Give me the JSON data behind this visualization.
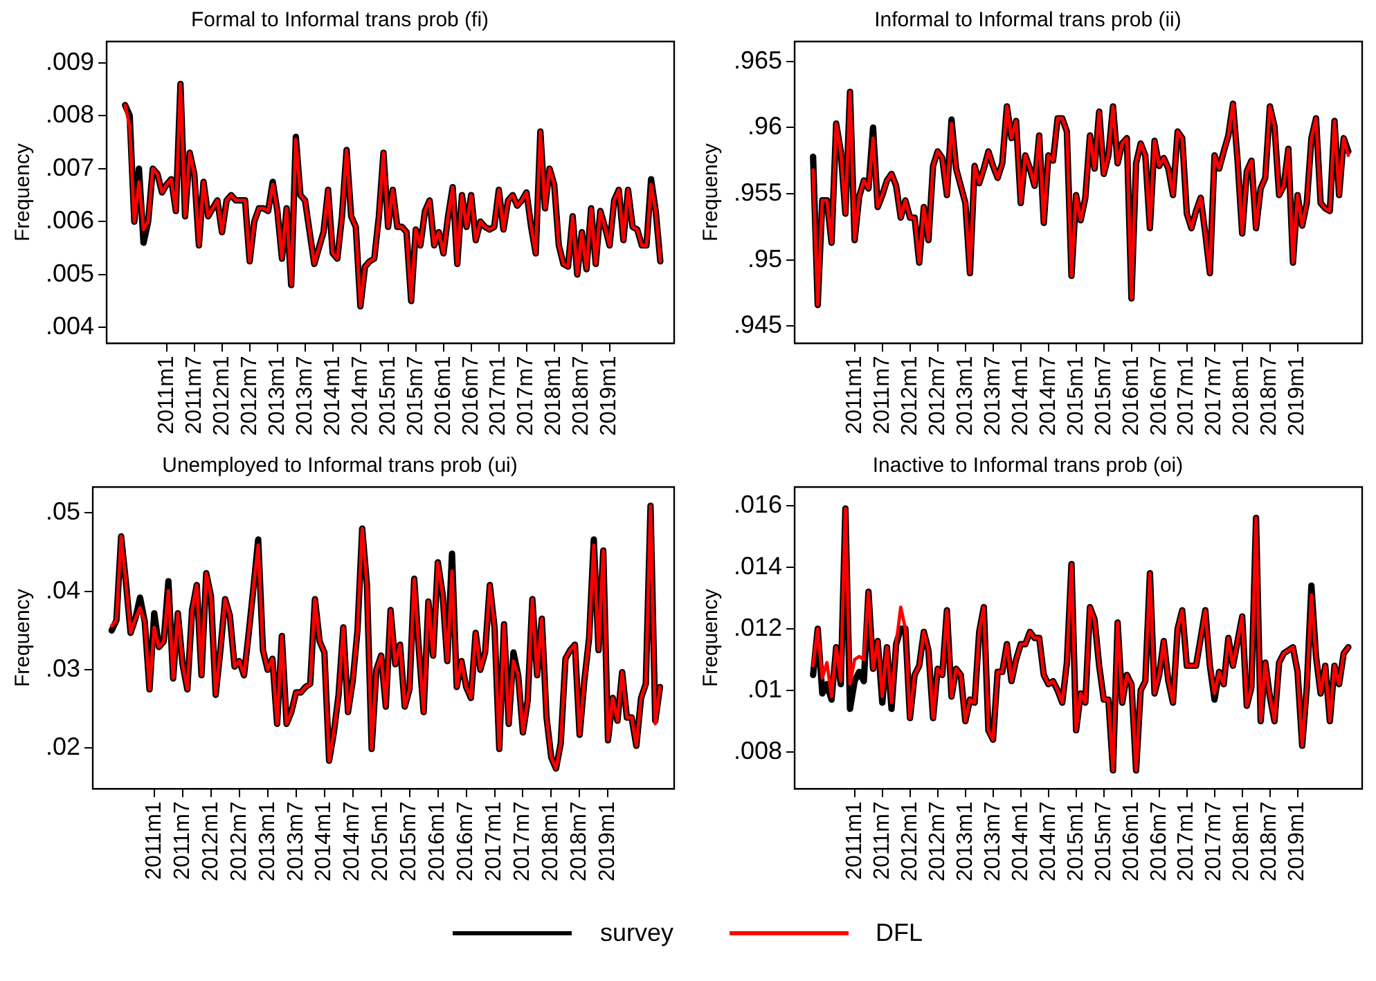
{
  "chart_data": [
    {
      "type": "line",
      "title": "Formal to Informal trans prob (fi)",
      "ylabel": "Frequency",
      "legend": "bottom",
      "grid": false,
      "x": [
        "2010-04",
        "2010-05",
        "2010-06",
        "2010-07",
        "2010-08",
        "2010-09",
        "2010-10",
        "2010-11",
        "2010-12",
        "2011-01",
        "2011-02",
        "2011-03",
        "2011-04",
        "2011-05",
        "2011-06",
        "2011-07",
        "2011-08",
        "2011-09",
        "2011-10",
        "2011-11",
        "2011-12",
        "2012-01",
        "2012-02",
        "2012-03",
        "2012-04",
        "2012-05",
        "2012-06",
        "2012-07",
        "2012-08",
        "2012-09",
        "2012-10",
        "2012-11",
        "2012-12",
        "2013-01",
        "2013-02",
        "2013-03",
        "2013-04",
        "2013-05",
        "2013-06",
        "2013-07",
        "2013-08",
        "2013-09",
        "2013-10",
        "2013-11",
        "2013-12",
        "2014-01",
        "2014-02",
        "2014-03",
        "2014-04",
        "2014-05",
        "2014-06",
        "2014-07",
        "2014-08",
        "2014-09",
        "2014-10",
        "2014-11",
        "2014-12",
        "2015-01",
        "2015-02",
        "2015-03",
        "2015-04",
        "2015-05",
        "2015-06",
        "2015-07",
        "2015-08",
        "2015-09",
        "2015-10",
        "2015-11",
        "2015-12",
        "2016-01",
        "2016-02",
        "2016-03",
        "2016-04",
        "2016-05",
        "2016-06",
        "2016-07",
        "2016-08",
        "2016-09",
        "2016-10",
        "2016-11",
        "2016-12",
        "2017-01",
        "2017-02",
        "2017-03",
        "2017-04",
        "2017-05",
        "2017-06",
        "2017-07",
        "2017-08",
        "2017-09",
        "2017-10",
        "2017-11",
        "2017-12",
        "2018-01",
        "2018-02",
        "2018-03",
        "2018-04",
        "2018-05",
        "2018-06",
        "2018-07",
        "2018-08",
        "2018-09",
        "2018-10",
        "2018-11",
        "2018-12",
        "2019-01",
        "2019-02",
        "2019-03",
        "2019-04",
        "2019-05",
        "2019-06",
        "2019-07",
        "2019-08",
        "2019-09",
        "2019-10",
        "2019-11",
        "2019-12"
      ],
      "xlim": [
        "2009-12",
        "2020-03"
      ],
      "xticks": [
        {
          "value": "2011-01",
          "label": "2011m1"
        },
        {
          "value": "2011-07",
          "label": "2011m7"
        },
        {
          "value": "2012-01",
          "label": "2012m1"
        },
        {
          "value": "2012-07",
          "label": "2012m7"
        },
        {
          "value": "2013-01",
          "label": "2013m1"
        },
        {
          "value": "2013-07",
          "label": "2013m7"
        },
        {
          "value": "2014-01",
          "label": "2014m1"
        },
        {
          "value": "2014-07",
          "label": "2014m7"
        },
        {
          "value": "2015-01",
          "label": "2015m1"
        },
        {
          "value": "2015-07",
          "label": "2015m7"
        },
        {
          "value": "2016-01",
          "label": "2016m1"
        },
        {
          "value": "2016-07",
          "label": "2016m7"
        },
        {
          "value": "2017-01",
          "label": "2017m1"
        },
        {
          "value": "2017-07",
          "label": "2017m7"
        },
        {
          "value": "2018-01",
          "label": "2018m1"
        },
        {
          "value": "2018-07",
          "label": "2018m7"
        },
        {
          "value": "2019-01",
          "label": "2019m1"
        }
      ],
      "ylim": [
        0.0037,
        0.0094
      ],
      "yticks": [
        {
          "value": 0.004,
          "label": ".004"
        },
        {
          "value": 0.005,
          "label": ".005"
        },
        {
          "value": 0.006,
          "label": ".006"
        },
        {
          "value": 0.007,
          "label": ".007"
        },
        {
          "value": 0.008,
          "label": ".008"
        },
        {
          "value": 0.009,
          "label": ".009"
        }
      ],
      "series": [
        {
          "name": "survey",
          "color": "#000000",
          "values": [
            0.0082,
            0.008,
            0.006,
            0.007,
            0.0056,
            0.006,
            0.007,
            0.0069,
            0.00655,
            0.0067,
            0.0068,
            0.0062,
            0.0086,
            0.0061,
            0.0073,
            0.0069,
            0.00555,
            0.00675,
            0.0061,
            0.00625,
            0.0064,
            0.0058,
            0.0064,
            0.0065,
            0.0064,
            0.0064,
            0.0064,
            0.00525,
            0.006,
            0.00625,
            0.00625,
            0.0062,
            0.00675,
            0.0062,
            0.0053,
            0.00625,
            0.0048,
            0.0076,
            0.0065,
            0.0064,
            0.0058,
            0.0052,
            0.0055,
            0.0058,
            0.0066,
            0.0054,
            0.0053,
            0.0061,
            0.00735,
            0.0061,
            0.0059,
            0.0044,
            0.00515,
            0.00525,
            0.0053,
            0.0061,
            0.0073,
            0.0059,
            0.0066,
            0.0059,
            0.0059,
            0.0058,
            0.0045,
            0.00585,
            0.00555,
            0.0062,
            0.0064,
            0.00555,
            0.0058,
            0.0054,
            0.0061,
            0.00665,
            0.0052,
            0.0065,
            0.0059,
            0.0065,
            0.00565,
            0.006,
            0.0059,
            0.00585,
            0.0059,
            0.0066,
            0.00585,
            0.0064,
            0.0065,
            0.0063,
            0.0064,
            0.00655,
            0.0059,
            0.0054,
            0.0077,
            0.00625,
            0.007,
            0.0067,
            0.00555,
            0.0052,
            0.00515,
            0.0061,
            0.005,
            0.0058,
            0.0051,
            0.00625,
            0.0052,
            0.0062,
            0.0059,
            0.00555,
            0.0064,
            0.0066,
            0.00565,
            0.0066,
            0.0059,
            0.00585,
            0.00555,
            0.00555,
            0.0068,
            0.0062,
            0.00525
          ]
        },
        {
          "name": "DFL",
          "color": "#ff0000",
          "values": [
            0.0082,
            0.0078,
            0.006,
            0.00675,
            0.00585,
            0.006,
            0.007,
            0.0069,
            0.00655,
            0.0067,
            0.0068,
            0.0062,
            0.0086,
            0.0061,
            0.0073,
            0.0069,
            0.00555,
            0.00675,
            0.0061,
            0.00625,
            0.0064,
            0.0058,
            0.0064,
            0.0065,
            0.0064,
            0.0064,
            0.0064,
            0.00525,
            0.006,
            0.00625,
            0.00625,
            0.0062,
            0.0067,
            0.0062,
            0.0053,
            0.00625,
            0.0048,
            0.00755,
            0.0065,
            0.0064,
            0.0058,
            0.0052,
            0.0055,
            0.0058,
            0.0066,
            0.0054,
            0.0053,
            0.0061,
            0.00735,
            0.0061,
            0.0059,
            0.0044,
            0.00515,
            0.00525,
            0.0053,
            0.0061,
            0.0073,
            0.0059,
            0.0066,
            0.0059,
            0.0059,
            0.0058,
            0.0045,
            0.00585,
            0.00555,
            0.0062,
            0.0064,
            0.00555,
            0.0058,
            0.0054,
            0.0061,
            0.00665,
            0.0052,
            0.0065,
            0.0059,
            0.0065,
            0.00565,
            0.006,
            0.0059,
            0.00585,
            0.0059,
            0.0066,
            0.00585,
            0.0064,
            0.0065,
            0.0063,
            0.0064,
            0.00655,
            0.0059,
            0.0054,
            0.0077,
            0.00625,
            0.007,
            0.0067,
            0.00555,
            0.0052,
            0.00515,
            0.0061,
            0.005,
            0.0058,
            0.0051,
            0.00625,
            0.0052,
            0.0062,
            0.0059,
            0.00555,
            0.0064,
            0.0066,
            0.00565,
            0.0066,
            0.0059,
            0.00585,
            0.00555,
            0.00555,
            0.0067,
            0.0062,
            0.00525
          ]
        }
      ]
    },
    {
      "type": "line",
      "title": "Informal to Informal trans prob (ii)",
      "ylabel": "Frequency",
      "legend": "bottom",
      "grid": false,
      "x": [
        "2010-04",
        "2010-05",
        "2010-06",
        "2010-07",
        "2010-08",
        "2010-09",
        "2010-10",
        "2010-11",
        "2010-12",
        "2011-01",
        "2011-02",
        "2011-03",
        "2011-04",
        "2011-05",
        "2011-06",
        "2011-07",
        "2011-08",
        "2011-09",
        "2011-10",
        "2011-11",
        "2011-12",
        "2012-01",
        "2012-02",
        "2012-03",
        "2012-04",
        "2012-05",
        "2012-06",
        "2012-07",
        "2012-08",
        "2012-09",
        "2012-10",
        "2012-11",
        "2012-12",
        "2013-01",
        "2013-02",
        "2013-03",
        "2013-04",
        "2013-05",
        "2013-06",
        "2013-07",
        "2013-08",
        "2013-09",
        "2013-10",
        "2013-11",
        "2013-12",
        "2014-01",
        "2014-02",
        "2014-03",
        "2014-04",
        "2014-05",
        "2014-06",
        "2014-07",
        "2014-08",
        "2014-09",
        "2014-10",
        "2014-11",
        "2014-12",
        "2015-01",
        "2015-02",
        "2015-03",
        "2015-04",
        "2015-05",
        "2015-06",
        "2015-07",
        "2015-08",
        "2015-09",
        "2015-10",
        "2015-11",
        "2015-12",
        "2016-01",
        "2016-02",
        "2016-03",
        "2016-04",
        "2016-05",
        "2016-06",
        "2016-07",
        "2016-08",
        "2016-09",
        "2016-10",
        "2016-11",
        "2016-12",
        "2017-01",
        "2017-02",
        "2017-03",
        "2017-04",
        "2017-05",
        "2017-06",
        "2017-07",
        "2017-08",
        "2017-09",
        "2017-10",
        "2017-11",
        "2017-12",
        "2018-01",
        "2018-02",
        "2018-03",
        "2018-04",
        "2018-05",
        "2018-06",
        "2018-07",
        "2018-08",
        "2018-09",
        "2018-10",
        "2018-11",
        "2018-12",
        "2019-01",
        "2019-02",
        "2019-03",
        "2019-04",
        "2019-05",
        "2019-06",
        "2019-07",
        "2019-08",
        "2019-09",
        "2019-10",
        "2019-11",
        "2019-12"
      ],
      "xlim": [
        "2009-12",
        "2020-03"
      ],
      "xticks": [
        {
          "value": "2011-01",
          "label": "2011m1"
        },
        {
          "value": "2011-07",
          "label": "2011m7"
        },
        {
          "value": "2012-01",
          "label": "2012m1"
        },
        {
          "value": "2012-07",
          "label": "2012m7"
        },
        {
          "value": "2013-01",
          "label": "2013m1"
        },
        {
          "value": "2013-07",
          "label": "2013m7"
        },
        {
          "value": "2014-01",
          "label": "2014m1"
        },
        {
          "value": "2014-07",
          "label": "2014m7"
        },
        {
          "value": "2015-01",
          "label": "2015m1"
        },
        {
          "value": "2015-07",
          "label": "2015m7"
        },
        {
          "value": "2016-01",
          "label": "2016m1"
        },
        {
          "value": "2016-07",
          "label": "2016m7"
        },
        {
          "value": "2017-01",
          "label": "2017m1"
        },
        {
          "value": "2017-07",
          "label": "2017m7"
        },
        {
          "value": "2018-01",
          "label": "2018m1"
        },
        {
          "value": "2018-07",
          "label": "2018m7"
        },
        {
          "value": "2019-01",
          "label": "2019m1"
        }
      ],
      "ylim": [
        0.9437,
        0.9665
      ],
      "yticks": [
        {
          "value": 0.945,
          "label": ".945"
        },
        {
          "value": 0.95,
          "label": ".95"
        },
        {
          "value": 0.955,
          "label": ".955"
        },
        {
          "value": 0.96,
          "label": ".96"
        },
        {
          "value": 0.965,
          "label": ".965"
        }
      ],
      "series": [
        {
          "name": "survey",
          "color": "#000000",
          "values": [
            0.9578,
            0.9466,
            0.9545,
            0.9545,
            0.9513,
            0.9603,
            0.9582,
            0.9535,
            0.9627,
            0.9515,
            0.9548,
            0.956,
            0.9554,
            0.96,
            0.954,
            0.9549,
            0.956,
            0.9565,
            0.9556,
            0.9532,
            0.9545,
            0.9532,
            0.9532,
            0.9498,
            0.954,
            0.9515,
            0.9571,
            0.9582,
            0.9577,
            0.9549,
            0.9606,
            0.9569,
            0.9556,
            0.9543,
            0.949,
            0.9571,
            0.9558,
            0.9569,
            0.9582,
            0.9571,
            0.9562,
            0.9573,
            0.9616,
            0.9592,
            0.9605,
            0.9543,
            0.9579,
            0.9569,
            0.9556,
            0.9594,
            0.9528,
            0.9579,
            0.9575,
            0.9607,
            0.9607,
            0.9597,
            0.9488,
            0.9549,
            0.953,
            0.9547,
            0.9594,
            0.9569,
            0.9612,
            0.9565,
            0.9579,
            0.9616,
            0.9573,
            0.9588,
            0.9592,
            0.9471,
            0.9573,
            0.9588,
            0.9579,
            0.9524,
            0.959,
            0.9571,
            0.9577,
            0.9569,
            0.9549,
            0.9597,
            0.9592,
            0.9535,
            0.9524,
            0.9537,
            0.9547,
            0.952,
            0.949,
            0.9579,
            0.9569,
            0.9582,
            0.9594,
            0.9618,
            0.9575,
            0.952,
            0.9567,
            0.9575,
            0.9524,
            0.9554,
            0.9562,
            0.9616,
            0.9601,
            0.9549,
            0.9556,
            0.9584,
            0.9498,
            0.9549,
            0.9526,
            0.9543,
            0.9592,
            0.9607,
            0.9543,
            0.9539,
            0.9537,
            0.9605,
            0.9549,
            0.9592,
            0.9582
          ]
        },
        {
          "name": "DFL",
          "color": "#ff0000",
          "values": [
            0.9568,
            0.9466,
            0.9545,
            0.9545,
            0.9513,
            0.9603,
            0.9582,
            0.9535,
            0.9627,
            0.9515,
            0.9548,
            0.956,
            0.9554,
            0.9592,
            0.954,
            0.9549,
            0.956,
            0.9565,
            0.9556,
            0.9532,
            0.9545,
            0.9532,
            0.9532,
            0.9498,
            0.954,
            0.9515,
            0.9571,
            0.9582,
            0.9577,
            0.9549,
            0.9603,
            0.9569,
            0.9556,
            0.9543,
            0.949,
            0.9571,
            0.9558,
            0.9569,
            0.9582,
            0.9571,
            0.9562,
            0.9573,
            0.9616,
            0.9592,
            0.9605,
            0.9543,
            0.9579,
            0.9569,
            0.9556,
            0.9594,
            0.9528,
            0.9579,
            0.9575,
            0.9607,
            0.9607,
            0.9597,
            0.9488,
            0.9549,
            0.953,
            0.9547,
            0.9594,
            0.9569,
            0.9612,
            0.9565,
            0.9579,
            0.9616,
            0.9573,
            0.9588,
            0.9592,
            0.9471,
            0.9573,
            0.9588,
            0.9579,
            0.9524,
            0.959,
            0.9571,
            0.9577,
            0.9569,
            0.9549,
            0.9597,
            0.9592,
            0.9535,
            0.9524,
            0.9537,
            0.9547,
            0.952,
            0.949,
            0.9579,
            0.9569,
            0.9582,
            0.9594,
            0.9618,
            0.9575,
            0.952,
            0.9567,
            0.9575,
            0.9524,
            0.9554,
            0.9562,
            0.9616,
            0.9601,
            0.9549,
            0.9556,
            0.9584,
            0.9498,
            0.9549,
            0.9526,
            0.9543,
            0.9592,
            0.9607,
            0.9543,
            0.9539,
            0.9537,
            0.9605,
            0.9549,
            0.9592,
            0.9579
          ]
        }
      ]
    },
    {
      "type": "line",
      "title": "Unemployed to Informal trans prob (ui)",
      "ylabel": "Frequency",
      "legend": "bottom",
      "grid": false,
      "x": [
        "2010-04",
        "2010-05",
        "2010-06",
        "2010-07",
        "2010-08",
        "2010-09",
        "2010-10",
        "2010-11",
        "2010-12",
        "2011-01",
        "2011-02",
        "2011-03",
        "2011-04",
        "2011-05",
        "2011-06",
        "2011-07",
        "2011-08",
        "2011-09",
        "2011-10",
        "2011-11",
        "2011-12",
        "2012-01",
        "2012-02",
        "2012-03",
        "2012-04",
        "2012-05",
        "2012-06",
        "2012-07",
        "2012-08",
        "2012-09",
        "2012-10",
        "2012-11",
        "2012-12",
        "2013-01",
        "2013-02",
        "2013-03",
        "2013-04",
        "2013-05",
        "2013-06",
        "2013-07",
        "2013-08",
        "2013-09",
        "2013-10",
        "2013-11",
        "2013-12",
        "2014-01",
        "2014-02",
        "2014-03",
        "2014-04",
        "2014-05",
        "2014-06",
        "2014-07",
        "2014-08",
        "2014-09",
        "2014-10",
        "2014-11",
        "2014-12",
        "2015-01",
        "2015-02",
        "2015-03",
        "2015-04",
        "2015-05",
        "2015-06",
        "2015-07",
        "2015-08",
        "2015-09",
        "2015-10",
        "2015-11",
        "2015-12",
        "2016-01",
        "2016-02",
        "2016-03",
        "2016-04",
        "2016-05",
        "2016-06",
        "2016-07",
        "2016-08",
        "2016-09",
        "2016-10",
        "2016-11",
        "2016-12",
        "2017-01",
        "2017-02",
        "2017-03",
        "2017-04",
        "2017-05",
        "2017-06",
        "2017-07",
        "2017-08",
        "2017-09",
        "2017-10",
        "2017-11",
        "2017-12",
        "2018-01",
        "2018-02",
        "2018-03",
        "2018-04",
        "2018-05",
        "2018-06",
        "2018-07",
        "2018-08",
        "2018-09",
        "2018-10",
        "2018-11",
        "2018-12",
        "2019-01",
        "2019-02",
        "2019-03",
        "2019-04",
        "2019-05",
        "2019-06",
        "2019-07",
        "2019-08",
        "2019-09",
        "2019-10",
        "2019-11",
        "2019-12"
      ],
      "xlim": [
        "2009-12",
        "2020-03"
      ],
      "xticks": [
        {
          "value": "2011-01",
          "label": "2011m1"
        },
        {
          "value": "2011-07",
          "label": "2011m7"
        },
        {
          "value": "2012-01",
          "label": "2012m1"
        },
        {
          "value": "2012-07",
          "label": "2012m7"
        },
        {
          "value": "2013-01",
          "label": "2013m1"
        },
        {
          "value": "2013-07",
          "label": "2013m7"
        },
        {
          "value": "2014-01",
          "label": "2014m1"
        },
        {
          "value": "2014-07",
          "label": "2014m7"
        },
        {
          "value": "2015-01",
          "label": "2015m1"
        },
        {
          "value": "2015-07",
          "label": "2015m7"
        },
        {
          "value": "2016-01",
          "label": "2016m1"
        },
        {
          "value": "2016-07",
          "label": "2016m7"
        },
        {
          "value": "2017-01",
          "label": "2017m1"
        },
        {
          "value": "2017-07",
          "label": "2017m7"
        },
        {
          "value": "2018-01",
          "label": "2018m1"
        },
        {
          "value": "2018-07",
          "label": "2018m7"
        },
        {
          "value": "2019-01",
          "label": "2019m1"
        }
      ],
      "ylim": [
        0.0148,
        0.0533
      ],
      "yticks": [
        {
          "value": 0.02,
          "label": ".02"
        },
        {
          "value": 0.03,
          "label": ".03"
        },
        {
          "value": 0.04,
          "label": ".04"
        },
        {
          "value": 0.05,
          "label": ".05"
        }
      ],
      "series": [
        {
          "name": "survey",
          "color": "#000000",
          "values": [
            0.035,
            0.0363,
            0.047,
            0.0412,
            0.0347,
            0.0365,
            0.0392,
            0.0361,
            0.0275,
            0.0372,
            0.0329,
            0.0336,
            0.0413,
            0.0289,
            0.0372,
            0.0307,
            0.0275,
            0.0376,
            0.0408,
            0.0293,
            0.0423,
            0.0394,
            0.0268,
            0.0325,
            0.039,
            0.0369,
            0.0304,
            0.0311,
            0.0293,
            0.0347,
            0.0405,
            0.0466,
            0.0325,
            0.03,
            0.0314,
            0.0231,
            0.0343,
            0.0231,
            0.0246,
            0.0271,
            0.0271,
            0.0278,
            0.0282,
            0.039,
            0.0336,
            0.0322,
            0.0184,
            0.022,
            0.0268,
            0.0354,
            0.0246,
            0.0286,
            0.035,
            0.048,
            0.0408,
            0.0199,
            0.03,
            0.0318,
            0.0253,
            0.0376,
            0.0307,
            0.0332,
            0.0253,
            0.0275,
            0.0416,
            0.0325,
            0.0246,
            0.0387,
            0.0318,
            0.0437,
            0.0397,
            0.0311,
            0.0448,
            0.0278,
            0.0311,
            0.0278,
            0.0264,
            0.0347,
            0.03,
            0.0322,
            0.0408,
            0.0354,
            0.0199,
            0.0358,
            0.0231,
            0.0322,
            0.0293,
            0.022,
            0.026,
            0.039,
            0.0293,
            0.0365,
            0.0239,
            0.0188,
            0.0174,
            0.0206,
            0.0314,
            0.0325,
            0.0332,
            0.0217,
            0.0286,
            0.034,
            0.0466,
            0.0325,
            0.0452,
            0.021,
            0.0264,
            0.0235,
            0.0297,
            0.0239,
            0.0239,
            0.0203,
            0.0264,
            0.0282,
            0.0509,
            0.0235,
            0.0278
          ]
        },
        {
          "name": "DFL",
          "color": "#ff0000",
          "values": [
            0.0356,
            0.0363,
            0.047,
            0.0412,
            0.0347,
            0.0365,
            0.0379,
            0.0361,
            0.0275,
            0.0354,
            0.0329,
            0.0336,
            0.0401,
            0.0289,
            0.0372,
            0.0307,
            0.0275,
            0.0376,
            0.0408,
            0.0293,
            0.0423,
            0.0394,
            0.0268,
            0.0325,
            0.039,
            0.0369,
            0.0304,
            0.0311,
            0.0293,
            0.0347,
            0.0405,
            0.0459,
            0.0325,
            0.03,
            0.0314,
            0.0231,
            0.0343,
            0.0231,
            0.0246,
            0.0271,
            0.0271,
            0.0278,
            0.0282,
            0.039,
            0.0336,
            0.0322,
            0.0184,
            0.022,
            0.0268,
            0.0354,
            0.0246,
            0.0286,
            0.035,
            0.048,
            0.0408,
            0.0199,
            0.03,
            0.0318,
            0.0253,
            0.0376,
            0.0307,
            0.0332,
            0.0253,
            0.0275,
            0.0416,
            0.0325,
            0.0246,
            0.0387,
            0.0318,
            0.0437,
            0.0397,
            0.0311,
            0.0426,
            0.0278,
            0.0311,
            0.0278,
            0.0264,
            0.0347,
            0.03,
            0.0322,
            0.0408,
            0.0354,
            0.0199,
            0.0358,
            0.0231,
            0.0311,
            0.0293,
            0.022,
            0.026,
            0.039,
            0.0293,
            0.0365,
            0.0239,
            0.0188,
            0.0174,
            0.0206,
            0.0314,
            0.0325,
            0.0332,
            0.0217,
            0.0286,
            0.034,
            0.0459,
            0.0325,
            0.0452,
            0.021,
            0.0264,
            0.0235,
            0.0297,
            0.0239,
            0.0239,
            0.0203,
            0.0264,
            0.0282,
            0.0509,
            0.0231,
            0.0278
          ]
        }
      ]
    },
    {
      "type": "line",
      "title": "Inactive to Informal trans prob (oi)",
      "ylabel": "Frequency",
      "legend": "bottom",
      "grid": false,
      "x": [
        "2010-04",
        "2010-05",
        "2010-06",
        "2010-07",
        "2010-08",
        "2010-09",
        "2010-10",
        "2010-11",
        "2010-12",
        "2011-01",
        "2011-02",
        "2011-03",
        "2011-04",
        "2011-05",
        "2011-06",
        "2011-07",
        "2011-08",
        "2011-09",
        "2011-10",
        "2011-11",
        "2011-12",
        "2012-01",
        "2012-02",
        "2012-03",
        "2012-04",
        "2012-05",
        "2012-06",
        "2012-07",
        "2012-08",
        "2012-09",
        "2012-10",
        "2012-11",
        "2012-12",
        "2013-01",
        "2013-02",
        "2013-03",
        "2013-04",
        "2013-05",
        "2013-06",
        "2013-07",
        "2013-08",
        "2013-09",
        "2013-10",
        "2013-11",
        "2013-12",
        "2014-01",
        "2014-02",
        "2014-03",
        "2014-04",
        "2014-05",
        "2014-06",
        "2014-07",
        "2014-08",
        "2014-09",
        "2014-10",
        "2014-11",
        "2014-12",
        "2015-01",
        "2015-02",
        "2015-03",
        "2015-04",
        "2015-05",
        "2015-06",
        "2015-07",
        "2015-08",
        "2015-09",
        "2015-10",
        "2015-11",
        "2015-12",
        "2016-01",
        "2016-02",
        "2016-03",
        "2016-04",
        "2016-05",
        "2016-06",
        "2016-07",
        "2016-08",
        "2016-09",
        "2016-10",
        "2016-11",
        "2016-12",
        "2017-01",
        "2017-02",
        "2017-03",
        "2017-04",
        "2017-05",
        "2017-06",
        "2017-07",
        "2017-08",
        "2017-09",
        "2017-10",
        "2017-11",
        "2017-12",
        "2018-01",
        "2018-02",
        "2018-03",
        "2018-04",
        "2018-05",
        "2018-06",
        "2018-07",
        "2018-08",
        "2018-09",
        "2018-10",
        "2018-11",
        "2018-12",
        "2019-01",
        "2019-02",
        "2019-03",
        "2019-04",
        "2019-05",
        "2019-06",
        "2019-07",
        "2019-08",
        "2019-09",
        "2019-10",
        "2019-11",
        "2019-12"
      ],
      "xlim": [
        "2009-12",
        "2020-03"
      ],
      "xticks": [
        {
          "value": "2011-01",
          "label": "2011m1"
        },
        {
          "value": "2011-07",
          "label": "2011m7"
        },
        {
          "value": "2012-01",
          "label": "2012m1"
        },
        {
          "value": "2012-07",
          "label": "2012m7"
        },
        {
          "value": "2013-01",
          "label": "2013m1"
        },
        {
          "value": "2013-07",
          "label": "2013m7"
        },
        {
          "value": "2014-01",
          "label": "2014m1"
        },
        {
          "value": "2014-07",
          "label": "2014m7"
        },
        {
          "value": "2015-01",
          "label": "2015m1"
        },
        {
          "value": "2015-07",
          "label": "2015m7"
        },
        {
          "value": "2016-01",
          "label": "2016m1"
        },
        {
          "value": "2016-07",
          "label": "2016m7"
        },
        {
          "value": "2017-01",
          "label": "2017m1"
        },
        {
          "value": "2017-07",
          "label": "2017m7"
        },
        {
          "value": "2018-01",
          "label": "2018m1"
        },
        {
          "value": "2018-07",
          "label": "2018m7"
        },
        {
          "value": "2019-01",
          "label": "2019m1"
        }
      ],
      "ylim": [
        0.0068,
        0.0166
      ],
      "yticks": [
        {
          "value": 0.008,
          "label": ".008"
        },
        {
          "value": 0.01,
          "label": ".01"
        },
        {
          "value": 0.012,
          "label": ".012"
        },
        {
          "value": 0.014,
          "label": ".014"
        },
        {
          "value": 0.016,
          "label": ".016"
        }
      ],
      "series": [
        {
          "name": "survey",
          "color": "#000000",
          "values": [
            0.0105,
            0.012,
            0.0099,
            0.0102,
            0.0097,
            0.0114,
            0.0102,
            0.0159,
            0.0094,
            0.0103,
            0.0106,
            0.0103,
            0.0132,
            0.0107,
            0.0116,
            0.0096,
            0.0114,
            0.0094,
            0.0115,
            0.012,
            0.012,
            0.0091,
            0.0105,
            0.0108,
            0.0119,
            0.0113,
            0.0091,
            0.0107,
            0.0105,
            0.0126,
            0.0098,
            0.0107,
            0.0105,
            0.009,
            0.0097,
            0.0096,
            0.0119,
            0.0127,
            0.0087,
            0.0084,
            0.0106,
            0.0106,
            0.0115,
            0.0103,
            0.011,
            0.0115,
            0.0115,
            0.0119,
            0.0117,
            0.0117,
            0.0105,
            0.0102,
            0.0103,
            0.01,
            0.0096,
            0.0109,
            0.0141,
            0.0087,
            0.0099,
            0.0096,
            0.0127,
            0.0123,
            0.0108,
            0.0097,
            0.0097,
            0.0074,
            0.0122,
            0.0096,
            0.0105,
            0.0102,
            0.0074,
            0.01,
            0.0103,
            0.0138,
            0.0099,
            0.0105,
            0.0116,
            0.0103,
            0.0096,
            0.012,
            0.0126,
            0.0108,
            0.0108,
            0.0108,
            0.0117,
            0.0126,
            0.0108,
            0.0097,
            0.0106,
            0.0102,
            0.0117,
            0.0108,
            0.0116,
            0.0124,
            0.0095,
            0.0101,
            0.0156,
            0.009,
            0.0109,
            0.0098,
            0.009,
            0.0109,
            0.0112,
            0.0113,
            0.0114,
            0.0106,
            0.0082,
            0.0101,
            0.0134,
            0.0111,
            0.0099,
            0.0108,
            0.009,
            0.0108,
            0.0102,
            0.0112,
            0.0114
          ]
        },
        {
          "name": "DFL",
          "color": "#ff0000",
          "values": [
            0.0108,
            0.012,
            0.0104,
            0.0109,
            0.0098,
            0.0114,
            0.0103,
            0.0159,
            0.0102,
            0.011,
            0.0111,
            0.011,
            0.0132,
            0.0107,
            0.0116,
            0.0098,
            0.0114,
            0.0096,
            0.0115,
            0.0127,
            0.012,
            0.0091,
            0.0105,
            0.0108,
            0.0119,
            0.0113,
            0.0091,
            0.0107,
            0.0105,
            0.0126,
            0.0098,
            0.0107,
            0.0105,
            0.009,
            0.0097,
            0.0096,
            0.0119,
            0.0127,
            0.0087,
            0.0084,
            0.0106,
            0.0106,
            0.0115,
            0.0103,
            0.011,
            0.0115,
            0.0115,
            0.0119,
            0.0117,
            0.0117,
            0.0105,
            0.0102,
            0.0103,
            0.01,
            0.0096,
            0.0109,
            0.0141,
            0.0087,
            0.0099,
            0.0096,
            0.0127,
            0.0123,
            0.0108,
            0.0097,
            0.0097,
            0.0074,
            0.0122,
            0.0096,
            0.0105,
            0.0102,
            0.0074,
            0.01,
            0.0103,
            0.0138,
            0.0099,
            0.0105,
            0.0116,
            0.0103,
            0.0096,
            0.012,
            0.0126,
            0.0108,
            0.0108,
            0.0108,
            0.0117,
            0.0126,
            0.0108,
            0.0099,
            0.0106,
            0.0102,
            0.0117,
            0.0108,
            0.0116,
            0.0124,
            0.0095,
            0.0101,
            0.0156,
            0.009,
            0.0109,
            0.0098,
            0.009,
            0.0109,
            0.0112,
            0.0113,
            0.0114,
            0.0106,
            0.0082,
            0.0101,
            0.0131,
            0.0111,
            0.0099,
            0.0108,
            0.009,
            0.0108,
            0.0102,
            0.0112,
            0.0114
          ]
        }
      ]
    }
  ]
}
